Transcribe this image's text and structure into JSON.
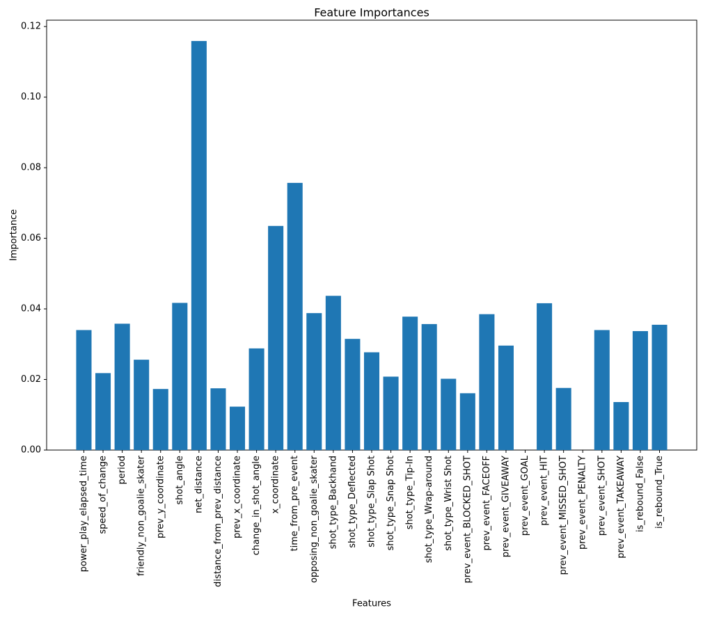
{
  "chart_data": {
    "type": "bar",
    "title": "Feature Importances",
    "xlabel": "Features",
    "ylabel": "Importance",
    "bar_color": "#1f77b4",
    "spine_color": "#000000",
    "text_color": "#000000",
    "grid": false,
    "legend": null,
    "ylim": [
      0,
      0.1218
    ],
    "yticks": [
      0.0,
      0.02,
      0.04,
      0.06,
      0.08,
      0.1,
      0.12
    ],
    "categories": [
      "power_play_elapsed_time",
      "speed_of_change",
      "period",
      "friendly_non_goalie_skater",
      "prev_y_coordinate",
      "shot_angle",
      "net_distance",
      "distance_from_prev_distance",
      "prev_x_coordinate",
      "change_in_shot_angle",
      "x_coordinate",
      "time_from_pre_event",
      "opposing_non_goalie_skater",
      "shot_type_Backhand",
      "shot_type_Deflected",
      "shot_type_Slap Shot",
      "shot_type_Snap Shot",
      "shot_type_Tip-In",
      "shot_type_Wrap-around",
      "shot_type_Wrist Shot",
      "prev_event_BLOCKED_SHOT",
      "prev_event_FACEOFF",
      "prev_event_GIVEAWAY",
      "prev_event_GOAL",
      "prev_event_HIT",
      "prev_event_MISSED_SHOT",
      "prev_event_PENALTY",
      "prev_event_SHOT",
      "prev_event_TAKEAWAY",
      "is_rebound_False",
      "is_rebound_True"
    ],
    "values": [
      0.034,
      0.0218,
      0.0358,
      0.0256,
      0.0173,
      0.0417,
      0.1159,
      0.0175,
      0.0123,
      0.0288,
      0.0635,
      0.0757,
      0.0388,
      0.0437,
      0.0315,
      0.0277,
      0.0208,
      0.0378,
      0.0357,
      0.0202,
      0.0161,
      0.0385,
      0.0296,
      0.0,
      0.0416,
      0.0176,
      0.0,
      0.034,
      0.0136,
      0.0337,
      0.0355
    ]
  }
}
